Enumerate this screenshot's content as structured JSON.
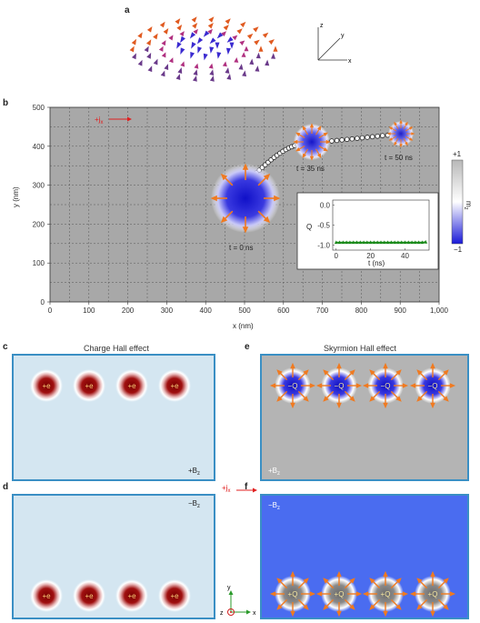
{
  "panels": {
    "a": "a",
    "b": "b",
    "c": "c",
    "d": "d",
    "e": "e",
    "f": "f"
  },
  "axes3d": {
    "x": "x",
    "y": "y",
    "z": "z"
  },
  "main": {
    "ylabel": "y (nm)",
    "xlabel": "x (nm)",
    "current": "+j",
    "current_sub": "x",
    "labels": {
      "t0": "t = 0 ns",
      "t35": "t = 35 ns",
      "t50": "t = 50 ns"
    },
    "colorbar": {
      "top": "+1",
      "bottom": "−1",
      "label": "m",
      "label_sub": "z"
    },
    "xticks": [
      "0",
      "100",
      "200",
      "300",
      "400",
      "500",
      "600",
      "700",
      "800",
      "900",
      "1,000"
    ],
    "yticks": [
      "0",
      "100",
      "200",
      "300",
      "400",
      "500"
    ]
  },
  "chart_data": {
    "type": "line",
    "title": "",
    "xlabel": "t (ns)",
    "ylabel": "Q",
    "xlim": [
      -2,
      54
    ],
    "ylim": [
      -1.12,
      0.12
    ],
    "xticks": [
      "0",
      "20",
      "40"
    ],
    "yticks": [
      "0.0",
      "-0.5",
      "-1.0"
    ],
    "x": [
      0,
      2,
      4,
      6,
      8,
      10,
      12,
      14,
      16,
      18,
      20,
      22,
      24,
      26,
      28,
      30,
      32,
      34,
      36,
      38,
      40,
      42,
      44,
      46,
      48,
      50,
      52
    ],
    "series": [
      {
        "values": [
          -0.93,
          -0.93,
          -0.93,
          -0.93,
          -0.93,
          -0.93,
          -0.93,
          -0.93,
          -0.93,
          -0.93,
          -0.93,
          -0.93,
          -0.93,
          -0.93,
          -0.93,
          -0.93,
          -0.93,
          -0.93,
          -0.93,
          -0.93,
          -0.93,
          -0.93,
          -0.93,
          -0.93,
          -0.93,
          -0.93,
          -0.92
        ],
        "color": "#1a8a1a"
      }
    ]
  },
  "lower": {
    "charge_title": "Charge Hall effect",
    "skyrmion_title": "Skyrmion Hall effect",
    "charge_label": "+e",
    "skyrmion_e_label": "−Q",
    "skyrmion_f_label": "+Q",
    "bz_plus": "+B",
    "bz_minus": "−B",
    "bz_sub": "z",
    "current": "+j",
    "current_sub": "x",
    "frame_axes": {
      "y": "y",
      "z": "z",
      "x": "x"
    }
  },
  "colors": {
    "panel_border": "#3a8fc4",
    "charge_bg": "#d4e6f1",
    "skyrmion_e_bg": "#b4b4b4",
    "skyrmion_f_bg": "#4a6cf0",
    "arrow": "#f07a20",
    "core_blue": "#1515c8"
  }
}
